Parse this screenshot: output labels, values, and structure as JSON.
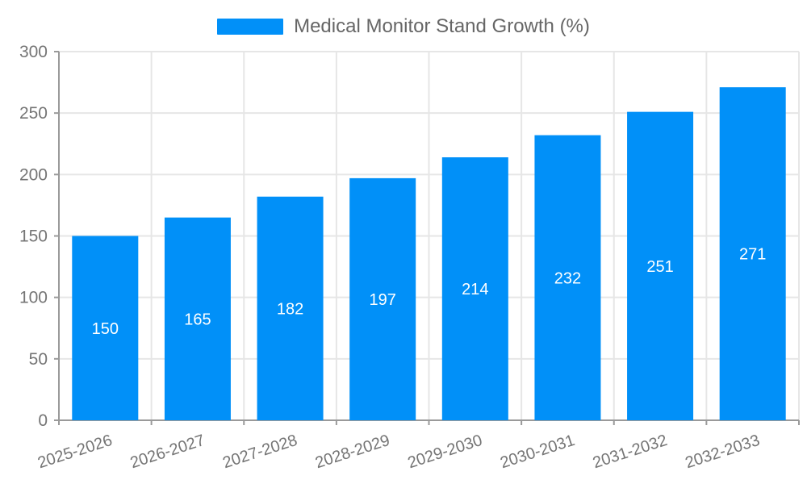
{
  "chart_data": {
    "type": "bar",
    "title": "Medical Monitor Stand Growth (%)",
    "categories": [
      "2025-2026",
      "2026-2027",
      "2027-2028",
      "2028-2029",
      "2029-2030",
      "2030-2031",
      "2031-2032",
      "2032-2033"
    ],
    "values": [
      150,
      165,
      182,
      197,
      214,
      232,
      251,
      271
    ],
    "xlabel": "",
    "ylabel": "",
    "ylim": [
      0,
      300
    ],
    "yticks": [
      0,
      50,
      100,
      150,
      200,
      250,
      300
    ],
    "grid": true,
    "legend_position": "top",
    "bar_color": "#0190f8",
    "value_label_color": "#ffffff",
    "grid_color": "#e6e6e6",
    "axis_color": "#9a9a9a",
    "tick_label_color": "#757575",
    "legend_text_color": "#666666",
    "background_color": "#ffffff"
  }
}
